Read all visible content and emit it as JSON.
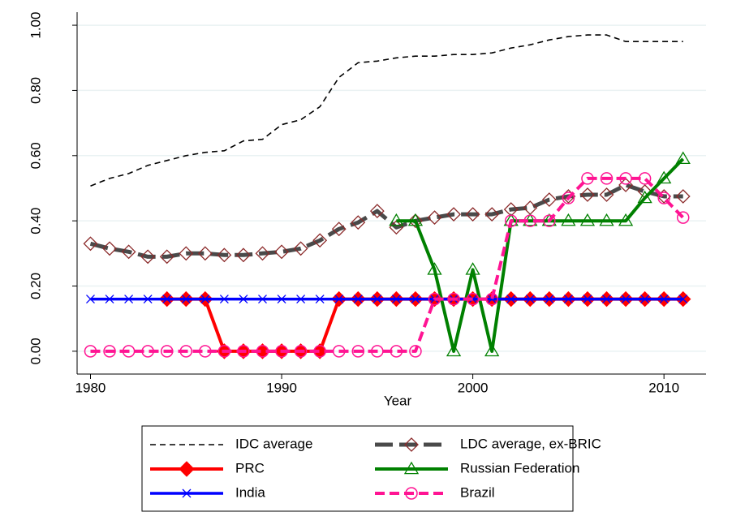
{
  "chart_data": {
    "type": "line",
    "x_label": "Year",
    "x": [
      1980,
      1981,
      1982,
      1983,
      1984,
      1985,
      1986,
      1987,
      1988,
      1989,
      1990,
      1991,
      1992,
      1993,
      1994,
      1995,
      1996,
      1997,
      1998,
      1999,
      2000,
      2001,
      2002,
      2003,
      2004,
      2005,
      2006,
      2007,
      2008,
      2009,
      2010,
      2011
    ],
    "xlim": [
      1979.3,
      2012.2
    ],
    "xticks": [
      1980,
      1990,
      2000,
      2010
    ],
    "ylim": [
      -0.07,
      1.04
    ],
    "yticks": [
      {
        "value": 0,
        "label": "0.00"
      },
      {
        "value": 0.2,
        "label": "0.20"
      },
      {
        "value": 0.4,
        "label": "0.40"
      },
      {
        "value": 0.6,
        "label": "0.60"
      },
      {
        "value": 0.8,
        "label": "0.80"
      },
      {
        "value": 1,
        "label": "1.00"
      }
    ],
    "grid": true,
    "legend": "bottom",
    "series": [
      {
        "name": "IDC average",
        "color": "#000000",
        "line_style": "dash",
        "line_width": 1.6,
        "marker": "none",
        "values": [
          0.507,
          0.53,
          0.545,
          0.57,
          0.585,
          0.6,
          0.61,
          0.615,
          0.645,
          0.65,
          0.695,
          0.71,
          0.75,
          0.84,
          0.885,
          0.89,
          0.9,
          0.905,
          0.905,
          0.91,
          0.91,
          0.915,
          0.93,
          0.94,
          0.955,
          0.965,
          0.97,
          0.97,
          0.95,
          0.95,
          0.95,
          0.95
        ]
      },
      {
        "name": "LDC average, ex-BRIC",
        "color": "#4a4a4a",
        "marker_color": "#8b2a2a",
        "line_style": "longdash",
        "line_width": 5,
        "marker": "diamond-hollow",
        "values": [
          0.33,
          0.315,
          0.305,
          0.29,
          0.29,
          0.3,
          0.3,
          0.295,
          0.295,
          0.3,
          0.305,
          0.315,
          0.34,
          0.375,
          0.395,
          0.43,
          0.38,
          0.4,
          0.41,
          0.42,
          0.42,
          0.42,
          0.435,
          0.44,
          0.465,
          0.475,
          0.48,
          0.48,
          0.51,
          0.49,
          0.475,
          0.475
        ]
      },
      {
        "name": "PRC",
        "color": "#ff0000",
        "marker_color": "#ff0000",
        "line_style": "solid",
        "line_width": 4,
        "marker": "diamond-filled",
        "values": [
          null,
          null,
          null,
          null,
          0.16,
          0.16,
          0.16,
          0,
          0,
          0,
          0,
          0,
          0,
          0.16,
          0.16,
          0.16,
          0.16,
          0.16,
          0.16,
          0.16,
          0.16,
          0.16,
          0.16,
          0.16,
          0.16,
          0.16,
          0.16,
          0.16,
          0.16,
          0.16,
          0.16,
          0.16
        ]
      },
      {
        "name": "Russian Federation",
        "color": "#008000",
        "marker_color": "#008000",
        "line_style": "solid",
        "line_width": 4,
        "marker": "triangle-hollow",
        "values": [
          null,
          null,
          null,
          null,
          null,
          null,
          null,
          null,
          null,
          null,
          null,
          null,
          null,
          null,
          null,
          null,
          0.4,
          0.4,
          0.25,
          0,
          0.25,
          0,
          0.4,
          0.4,
          0.4,
          0.4,
          0.4,
          0.4,
          0.4,
          0.47,
          0.53,
          0.59
        ]
      },
      {
        "name": "India",
        "color": "#0000ff",
        "marker_color": "#0000ff",
        "line_style": "solid",
        "line_width": 3.5,
        "marker": "x",
        "values": [
          0.16,
          0.16,
          0.16,
          0.16,
          0.16,
          0.16,
          0.16,
          0.16,
          0.16,
          0.16,
          0.16,
          0.16,
          0.16,
          0.16,
          0.16,
          0.16,
          0.16,
          0.16,
          0.16,
          0.16,
          0.16,
          0.16,
          0.16,
          0.16,
          0.16,
          0.16,
          0.16,
          0.16,
          0.16,
          0.16,
          0.16,
          0.16
        ]
      },
      {
        "name": "Brazil",
        "color": "#ff1493",
        "marker_color": "#ff1493",
        "line_style": "dash",
        "line_width": 4,
        "marker": "circle-hollow",
        "values": [
          0,
          0,
          0,
          0,
          0,
          0,
          0,
          0,
          0,
          0,
          0,
          0,
          0,
          0,
          0,
          0,
          0,
          0,
          0.16,
          0.16,
          0.16,
          0.16,
          0.4,
          0.4,
          0.4,
          0.47,
          0.53,
          0.53,
          0.53,
          0.53,
          0.47,
          0.41
        ]
      }
    ]
  }
}
